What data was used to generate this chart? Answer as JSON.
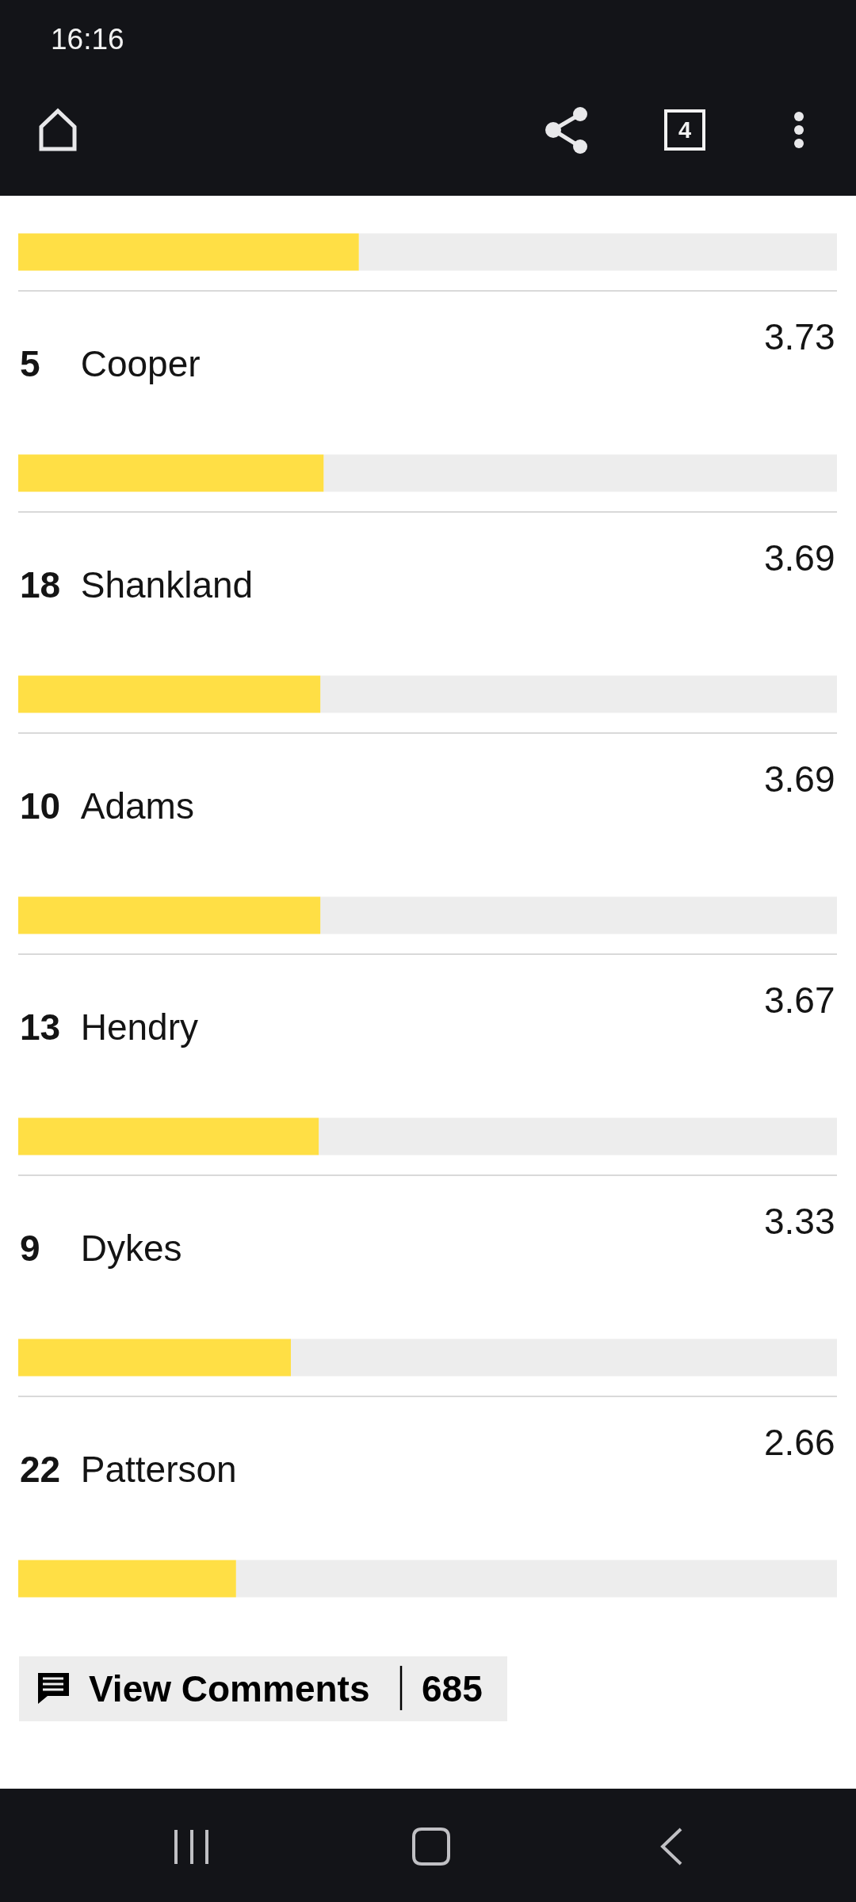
{
  "chart_data": {
    "type": "bar",
    "orientation": "horizontal",
    "categories": [
      null,
      "5 Cooper",
      "18 Shankland",
      "10 Adams",
      "13 Hendry",
      "9 Dykes",
      "22 Patterson"
    ],
    "values": [
      4.16,
      3.73,
      3.69,
      3.69,
      3.67,
      3.33,
      2.66
    ],
    "color": "#ffdf45",
    "value_labels": [
      null,
      "3.73",
      "3.69",
      "3.69",
      "3.67",
      "3.33",
      "2.66"
    ],
    "xlim": [
      0,
      10
    ],
    "grid": "y",
    "tick_labels": "y",
    "annotations": [
      "16:16",
      "4",
      "View Comments",
      "685"
    ]
  }
}
